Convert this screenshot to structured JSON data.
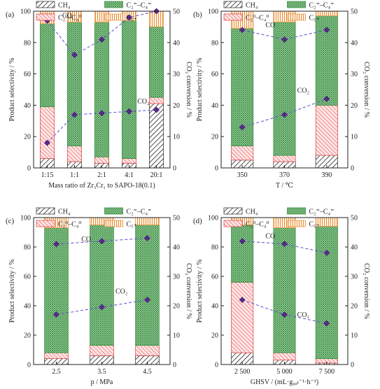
{
  "legend": {
    "ch4": "CH₄",
    "c2c4_olefin": "C₂⁼–C₄⁼",
    "c2c4_paraffin": "C₂⁰–C₄⁰",
    "c5plus": "C₅₊"
  },
  "colors": {
    "ch4": "#222222",
    "olefin": "#2f8a3a",
    "olefin_bg": "#cfe8c8",
    "paraffin": "#e04040",
    "paraffin_bg": "#fbdada",
    "c5": "#e8903a",
    "c5_bg": "#fdebd6",
    "line": "#6a5acd",
    "marker": "#5a2a8a"
  },
  "chart_data": [
    {
      "panel": "(a)",
      "type": "bar",
      "xlabel": "Mass ratio of Zr₃Cr₁ to SAPO-18(0.1)",
      "ylabel": "Product selectivity / %",
      "y2label": "CO₂ conversion / %",
      "ylim": [
        0,
        100
      ],
      "y2lim": [
        0,
        50
      ],
      "yticks": [
        "0",
        "20",
        "40",
        "60",
        "80",
        "100"
      ],
      "y2ticks": [
        "0",
        "10",
        "20",
        "30",
        "40",
        "50"
      ],
      "categories": [
        "1:15",
        "1:1",
        "2:1",
        "4:1",
        "20:1"
      ],
      "stacks": {
        "ch4": [
          6,
          4,
          3,
          3,
          41
        ],
        "c2c4_paraffin": [
          33,
          10,
          4,
          3,
          4
        ],
        "c2c4_olefin": [
          53,
          79,
          86,
          88,
          45
        ],
        "c5plus": [
          8,
          7,
          7,
          6,
          10
        ]
      },
      "co_selectivity": [
        47,
        36,
        41,
        48,
        50
      ],
      "co2_conversion": [
        8,
        17,
        17.5,
        18,
        18.5
      ],
      "labels": {
        "co": "CO",
        "co2": "CO₂"
      }
    },
    {
      "panel": "(b)",
      "type": "bar",
      "xlabel": "T / ℃",
      "ylabel": "Product selectivity / %",
      "y2label": "CO₂ conversion / %",
      "ylim": [
        0,
        100
      ],
      "y2lim": [
        0,
        50
      ],
      "yticks": [
        "0",
        "20",
        "40",
        "60",
        "80",
        "100"
      ],
      "y2ticks": [
        "0",
        "10",
        "20",
        "30",
        "40",
        "50"
      ],
      "categories": [
        "350",
        "370",
        "390"
      ],
      "stacks": {
        "ch4": [
          5,
          4,
          8
        ],
        "c2c4_paraffin": [
          9,
          4,
          32
        ],
        "c2c4_olefin": [
          75,
          85,
          57
        ],
        "c5plus": [
          11,
          7,
          3
        ]
      },
      "co_selectivity": [
        44,
        41,
        44
      ],
      "co2_conversion": [
        13,
        17,
        22
      ],
      "labels": {
        "co": "CO",
        "co2": "CO₂"
      }
    },
    {
      "panel": "(c)",
      "type": "bar",
      "xlabel": "p / MPa",
      "ylabel": "Product selectivity / %",
      "y2label": "CO₂ conversion / %",
      "ylim": [
        0,
        100
      ],
      "y2lim": [
        0,
        50
      ],
      "yticks": [
        "0",
        "20",
        "40",
        "60",
        "80",
        "100"
      ],
      "y2ticks": [
        "0",
        "10",
        "20",
        "30",
        "40",
        "50"
      ],
      "categories": [
        "2.5",
        "3.5",
        "4.5"
      ],
      "stacks": {
        "ch4": [
          4,
          6,
          6
        ],
        "c2c4_paraffin": [
          4,
          7,
          7
        ],
        "c2c4_olefin": [
          85,
          82,
          82
        ],
        "c5plus": [
          7,
          5,
          5
        ]
      },
      "co_selectivity": [
        41,
        42,
        43
      ],
      "co2_conversion": [
        17,
        19.5,
        22
      ],
      "labels": {
        "co": "CO",
        "co2": "CO₂"
      }
    },
    {
      "panel": "(d)",
      "type": "bar",
      "xlabel": "GHSV / (mL·g₉ₐₜ⁻¹·h⁻¹)",
      "ylabel": "Product selectivity / %",
      "y2label": "CO₂ conversion / %",
      "ylim": [
        0,
        100
      ],
      "y2lim": [
        0,
        50
      ],
      "yticks": [
        "0",
        "20",
        "40",
        "60",
        "80",
        "100"
      ],
      "y2ticks": [
        "0",
        "10",
        "20",
        "30",
        "40",
        "50"
      ],
      "categories": [
        "2 500",
        "5 000",
        "7 500"
      ],
      "stacks": {
        "ch4": [
          8,
          3,
          1
        ],
        "c2c4_paraffin": [
          48,
          5,
          3
        ],
        "c2c4_olefin": [
          39,
          85,
          90
        ],
        "c5plus": [
          5,
          7,
          6
        ]
      },
      "co_selectivity": [
        42,
        41,
        38
      ],
      "co2_conversion": [
        22,
        17,
        14
      ],
      "labels": {
        "co": "CO",
        "co2": "CO₂"
      }
    }
  ]
}
